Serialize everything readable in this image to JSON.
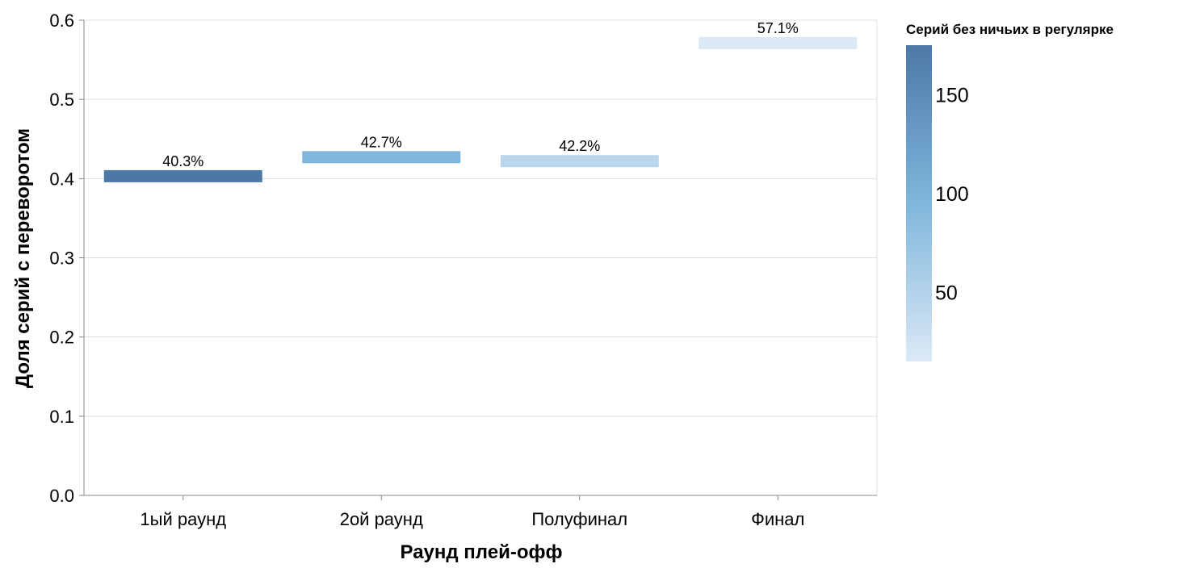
{
  "chart_data": {
    "type": "bar",
    "mark": "tick",
    "categories": [
      "1ый раунд",
      "2ой раунд",
      "Полуфинал",
      "Финал"
    ],
    "values": [
      0.403,
      0.427,
      0.422,
      0.571
    ],
    "value_labels": [
      "40.3%",
      "42.7%",
      "42.2%",
      "57.1%"
    ],
    "color_values": [
      175,
      95,
      45,
      15
    ],
    "xlabel": "Раунд плей-офф",
    "ylabel": "Доля серий с переворотом",
    "ylim": [
      0,
      0.6
    ],
    "yticks": [
      "0.0",
      "0.1",
      "0.2",
      "0.3",
      "0.4",
      "0.5",
      "0.6"
    ],
    "grid": true,
    "legend": {
      "title": "Серий без ничьих в регулярке",
      "type": "gradient",
      "placement": "right",
      "domain": [
        15,
        175
      ],
      "ticks": [
        "50",
        "100",
        "150"
      ],
      "color_low": "#dbe9f6",
      "color_mid": "#7fb6db",
      "color_high": "#4c78a8"
    }
  }
}
